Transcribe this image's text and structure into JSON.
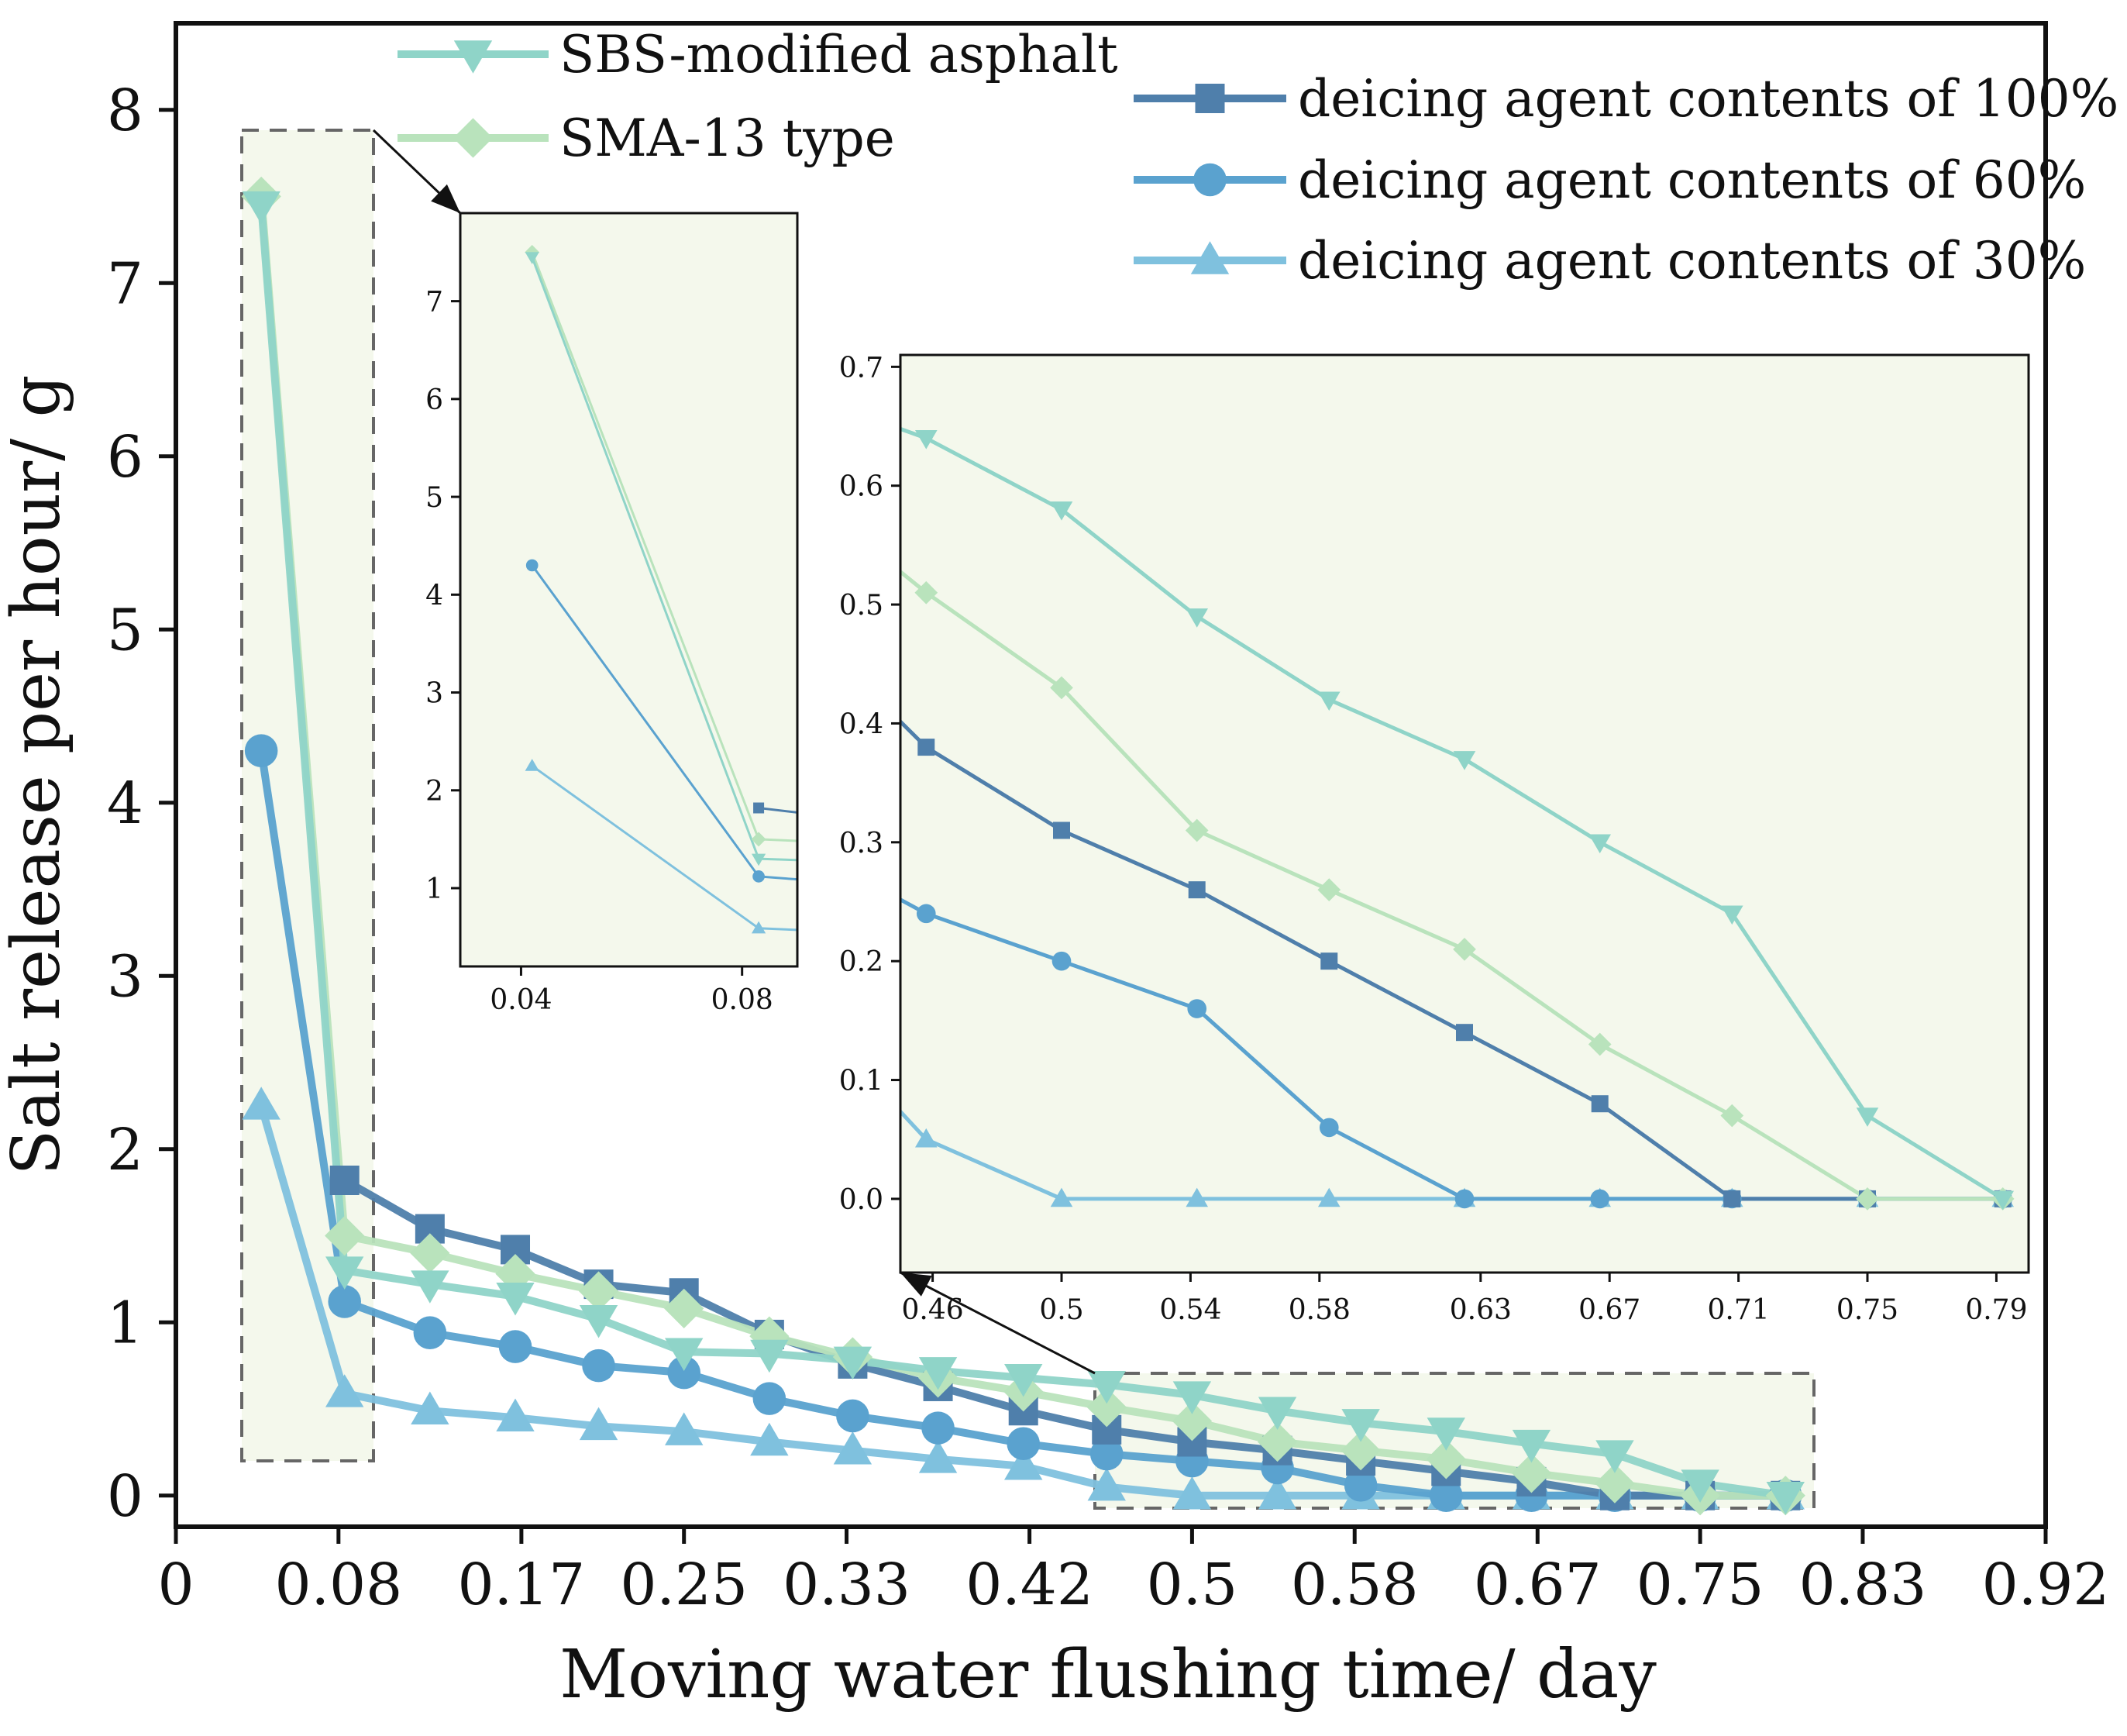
{
  "chart_data": {
    "type": "line",
    "xlabel": "Moving water flushing time/ day",
    "ylabel": "Salt release per hour/ g",
    "x_ticks": [
      "0",
      "0.08",
      "0.17",
      "0.25",
      "0.33",
      "0.42",
      "0.5",
      "0.58",
      "0.67",
      "0.75",
      "0.83",
      "0.92"
    ],
    "y_ticks": [
      "0",
      "1",
      "2",
      "3",
      "4",
      "5",
      "6",
      "7",
      "8"
    ],
    "xlim": [
      0,
      0.92
    ],
    "ylim": [
      -0.18,
      8.5
    ],
    "x": [
      0.042,
      0.083,
      0.125,
      0.167,
      0.208,
      0.25,
      0.292,
      0.333,
      0.375,
      0.417,
      0.458,
      0.5,
      0.542,
      0.583,
      0.625,
      0.667,
      0.708,
      0.75,
      0.792
    ],
    "series": [
      {
        "name": "SBS-modified asphalt",
        "group": "pavement",
        "marker": "triangle-down",
        "color": "#8fd4c8",
        "values": [
          7.45,
          1.3,
          1.22,
          1.15,
          1.02,
          0.83,
          0.82,
          0.78,
          0.72,
          0.68,
          0.64,
          0.58,
          0.49,
          0.42,
          0.37,
          0.3,
          0.24,
          0.07,
          0.0
        ]
      },
      {
        "name": "SMA-13 type",
        "group": "pavement",
        "marker": "diamond",
        "color": "#b9e3bc",
        "values": [
          7.5,
          1.5,
          1.4,
          1.28,
          1.18,
          1.08,
          0.92,
          0.8,
          0.68,
          0.6,
          0.51,
          0.43,
          0.31,
          0.26,
          0.21,
          0.13,
          0.07,
          0.0,
          0.0
        ]
      },
      {
        "name": "deicing agent contents of 100%",
        "group": "content",
        "marker": "square",
        "color": "#4f7fab",
        "values": [
          null,
          1.82,
          1.54,
          1.42,
          1.22,
          1.17,
          0.93,
          0.76,
          0.63,
          0.49,
          0.38,
          0.31,
          0.26,
          0.2,
          0.14,
          0.08,
          0.0,
          0.0,
          0.0
        ]
      },
      {
        "name": "deicing agent contents of 60%",
        "group": "content",
        "marker": "circle",
        "color": "#5aa2cf",
        "values": [
          4.3,
          1.12,
          0.94,
          0.86,
          0.75,
          0.71,
          0.56,
          0.46,
          0.39,
          0.3,
          0.24,
          0.2,
          0.16,
          0.06,
          0.0,
          0.0,
          0.0,
          0.0,
          0.0
        ]
      },
      {
        "name": "deicing agent contents of 30%",
        "group": "content",
        "marker": "triangle-up",
        "color": "#7fc1de",
        "values": [
          2.25,
          0.59,
          0.49,
          0.45,
          0.4,
          0.37,
          0.31,
          0.26,
          0.21,
          0.17,
          0.05,
          0.0,
          0.0,
          0.0,
          0.0,
          0.0,
          0.0,
          0.0,
          0.0
        ]
      }
    ],
    "inset_left": {
      "x_ticks": [
        "0.04",
        "0.08"
      ],
      "y_ticks": [
        "1",
        "2",
        "3",
        "4",
        "5",
        "6",
        "7"
      ],
      "xlim": [
        0.029,
        0.09
      ],
      "ylim": [
        0.2,
        7.9
      ]
    },
    "inset_right": {
      "x_ticks": [
        "0.46",
        "0.5",
        "0.54",
        "0.58",
        "0.63",
        "0.67",
        "0.71",
        "0.75",
        "0.79"
      ],
      "y_ticks": [
        "0.0",
        "0.1",
        "0.2",
        "0.3",
        "0.4",
        "0.5",
        "0.6",
        "0.7"
      ],
      "xlim": [
        0.45,
        0.8
      ],
      "ylim": [
        -0.062,
        0.71
      ]
    },
    "legend": {
      "position": "top-right"
    }
  },
  "colors": {
    "zoom_fill": "#f4f8ec",
    "zoom_border": "#666666",
    "axis": "#111111"
  }
}
